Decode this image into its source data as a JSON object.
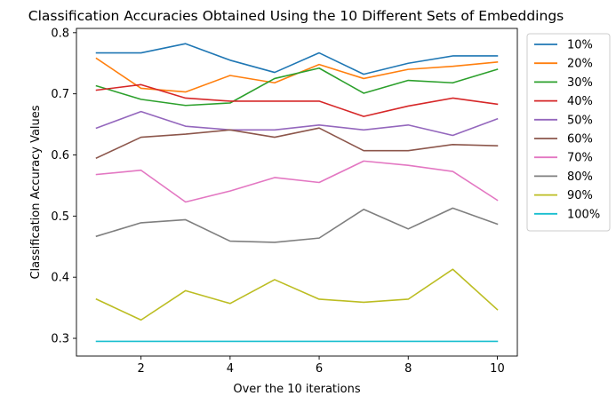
{
  "chart_data": {
    "type": "line",
    "title": "Classification Accuracies Obtained Using the 10 Different Sets of Embeddings",
    "xlabel": "Over the 10 iterations",
    "ylabel": "Classification Accuracy Values",
    "x": [
      1,
      2,
      3,
      4,
      5,
      6,
      7,
      8,
      9,
      10
    ],
    "xlim": [
      0.55,
      10.45
    ],
    "ylim": [
      0.271,
      0.807
    ],
    "xticks": [
      2,
      4,
      6,
      8,
      10
    ],
    "yticks": [
      0.3,
      0.4,
      0.5,
      0.6,
      0.7,
      0.8
    ],
    "xtick_labels": [
      "2",
      "4",
      "6",
      "8",
      "10"
    ],
    "ytick_labels": [
      "0.3",
      "0.4",
      "0.5",
      "0.6",
      "0.7",
      "0.8"
    ],
    "grid": false,
    "legend_position": "outside-right-top",
    "series": [
      {
        "name": "10%",
        "color": "#1f77b4",
        "values": [
          0.767,
          0.767,
          0.782,
          0.755,
          0.735,
          0.767,
          0.732,
          0.75,
          0.762,
          0.762
        ]
      },
      {
        "name": "20%",
        "color": "#ff7f0e",
        "values": [
          0.758,
          0.709,
          0.703,
          0.73,
          0.718,
          0.748,
          0.725,
          0.74,
          0.745,
          0.752
        ]
      },
      {
        "name": "30%",
        "color": "#2ca02c",
        "values": [
          0.713,
          0.691,
          0.681,
          0.685,
          0.725,
          0.742,
          0.701,
          0.722,
          0.718,
          0.74
        ]
      },
      {
        "name": "40%",
        "color": "#d62728",
        "values": [
          0.706,
          0.715,
          0.693,
          0.688,
          0.688,
          0.688,
          0.663,
          0.68,
          0.693,
          0.683
        ]
      },
      {
        "name": "50%",
        "color": "#9467bd",
        "values": [
          0.644,
          0.671,
          0.647,
          0.641,
          0.641,
          0.649,
          0.641,
          0.649,
          0.632,
          0.659
        ]
      },
      {
        "name": "60%",
        "color": "#8c564b",
        "values": [
          0.595,
          0.629,
          0.634,
          0.641,
          0.629,
          0.644,
          0.607,
          0.607,
          0.617,
          0.615
        ]
      },
      {
        "name": "70%",
        "color": "#e377c2",
        "values": [
          0.568,
          0.575,
          0.523,
          0.541,
          0.563,
          0.555,
          0.59,
          0.583,
          0.573,
          0.526
        ]
      },
      {
        "name": "80%",
        "color": "#7f7f7f",
        "values": [
          0.467,
          0.489,
          0.494,
          0.459,
          0.457,
          0.464,
          0.511,
          0.479,
          0.513,
          0.487
        ]
      },
      {
        "name": "90%",
        "color": "#bcbd22",
        "values": [
          0.364,
          0.33,
          0.378,
          0.357,
          0.396,
          0.364,
          0.359,
          0.364,
          0.413,
          0.347
        ]
      },
      {
        "name": "100%",
        "color": "#17becf",
        "values": [
          0.295,
          0.295,
          0.295,
          0.295,
          0.295,
          0.295,
          0.295,
          0.295,
          0.295,
          0.295
        ]
      }
    ]
  }
}
